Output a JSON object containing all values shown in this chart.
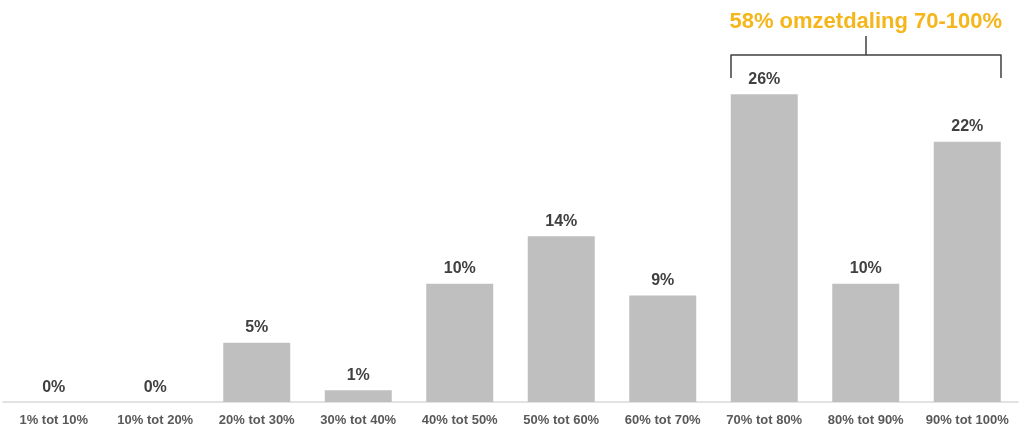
{
  "chart_data": {
    "type": "bar",
    "categories": [
      "1% tot 10%",
      "10% tot 20%",
      "20% tot 30%",
      "30% tot 40%",
      "40% tot 50%",
      "50% tot 60%",
      "60% tot 70%",
      "70% tot 80%",
      "80% tot 90%",
      "90% tot 100%"
    ],
    "values": [
      0,
      0,
      5,
      1,
      10,
      14,
      9,
      26,
      10,
      22
    ],
    "color": "#bfbfbf",
    "value_labels": [
      "0%",
      "0%",
      "5%",
      "1%",
      "10%",
      "14%",
      "9%",
      "26%",
      "10%",
      "22%"
    ],
    "annotations": [
      {
        "text": "58% omzetdaling 70-100%",
        "x": "80% tot 90%"
      }
    ],
    "tick_labels": "x"
  }
}
